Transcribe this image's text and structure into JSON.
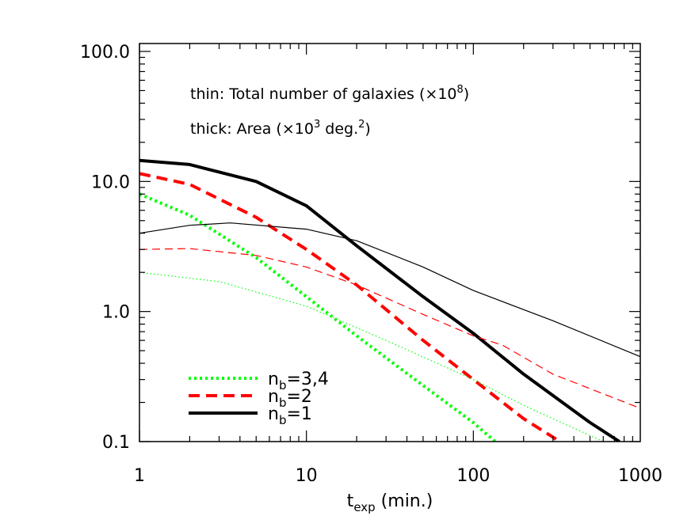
{
  "chart_data": {
    "type": "line",
    "xscale": "log",
    "yscale": "log",
    "xlim": [
      1,
      1000
    ],
    "ylim": [
      0.1,
      115
    ],
    "grid": false,
    "xlabel": {
      "main": "t",
      "sub": "exp",
      "rest": " (min.)"
    },
    "xticks": [
      {
        "v": 1,
        "label": "1"
      },
      {
        "v": 10,
        "label": "10"
      },
      {
        "v": 100,
        "label": "100"
      },
      {
        "v": 1000,
        "label": "1000"
      }
    ],
    "yticks": [
      {
        "v": 0.1,
        "label": "0.1"
      },
      {
        "v": 1,
        "label": "1.0"
      },
      {
        "v": 10,
        "label": "10.0"
      },
      {
        "v": 100,
        "label": "100.0"
      }
    ],
    "annotations": [
      {
        "text": "thin: Total number of galaxies (×10",
        "sup": "8",
        "tail": ")"
      },
      {
        "text": "thick: Area (×10",
        "sup": "3",
        "tail": " deg.",
        "sup2": "2",
        "tail2": ")"
      }
    ],
    "legend": {
      "placement": "bottom-left",
      "entries": [
        {
          "main": "n",
          "sub": "b",
          "rest": "=3,4",
          "color": "#00ff00",
          "style": "dotted"
        },
        {
          "main": "n",
          "sub": "b",
          "rest": "=2",
          "color": "#ff0000",
          "style": "dashed"
        },
        {
          "main": "n",
          "sub": "b",
          "rest": "=1",
          "color": "#000000",
          "style": "solid"
        }
      ]
    },
    "series": [
      {
        "group": "n_b=1",
        "weight": "thick",
        "quantity": "Area",
        "color": "#000000",
        "style": "solid",
        "x": [
          1,
          2,
          5,
          10,
          20,
          50,
          100,
          200,
          500,
          750
        ],
        "y": [
          14.5,
          13.5,
          10,
          6.5,
          3.2,
          1.3,
          0.68,
          0.33,
          0.14,
          0.1
        ]
      },
      {
        "group": "n_b=2",
        "weight": "thick",
        "quantity": "Area",
        "color": "#ff0000",
        "style": "dashed",
        "x": [
          1,
          2,
          5,
          10,
          20,
          50,
          100,
          200,
          330
        ],
        "y": [
          11.5,
          9.5,
          5.3,
          3.0,
          1.6,
          0.6,
          0.3,
          0.15,
          0.1
        ]
      },
      {
        "group": "n_b=3,4",
        "weight": "thick",
        "quantity": "Area",
        "color": "#00ff00",
        "style": "dotted",
        "x": [
          1,
          2,
          5,
          10,
          20,
          50,
          100,
          135
        ],
        "y": [
          8,
          5.5,
          2.6,
          1.3,
          0.65,
          0.27,
          0.14,
          0.1
        ]
      },
      {
        "group": "n_b=1",
        "weight": "thin",
        "quantity": "Total number of galaxies",
        "color": "#000000",
        "style": "solid",
        "x": [
          1,
          2,
          3.5,
          10,
          20,
          50,
          100,
          300,
          1000
        ],
        "y": [
          4,
          4.6,
          4.8,
          4.3,
          3.5,
          2.2,
          1.45,
          0.85,
          0.45
        ]
      },
      {
        "group": "n_b=2",
        "weight": "thin",
        "quantity": "Total number of galaxies",
        "color": "#ff0000",
        "style": "dashed",
        "x": [
          1,
          2,
          5,
          10,
          20,
          50,
          100,
          150,
          300,
          1000
        ],
        "y": [
          3,
          3.05,
          2.7,
          2.2,
          1.6,
          0.95,
          0.65,
          0.55,
          0.33,
          0.18
        ]
      },
      {
        "group": "n_b=3,4",
        "weight": "thin",
        "quantity": "Total number of galaxies",
        "color": "#00ff00",
        "style": "dotted",
        "x": [
          1,
          3,
          10,
          30,
          100,
          200,
          600
        ],
        "y": [
          2,
          1.7,
          1.1,
          0.6,
          0.3,
          0.19,
          0.1
        ]
      }
    ]
  }
}
